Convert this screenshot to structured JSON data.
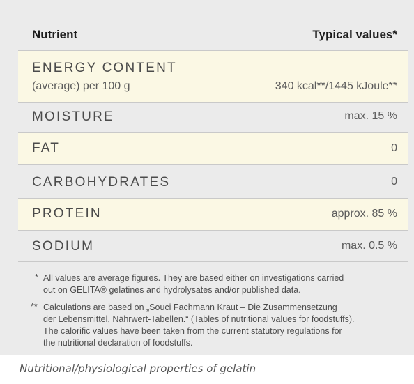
{
  "table": {
    "header_nutrient": "Nutrient",
    "header_values": "Typical values*",
    "rows": [
      {
        "label": "ENERGY CONTENT",
        "sub": "(average) per 100 g",
        "value": "340 kcal**/1445 kJoule**"
      },
      {
        "label": "MOISTURE",
        "value": "max. 15 %"
      },
      {
        "label": "FAT",
        "value": "0"
      },
      {
        "label": "CARBOHYDRATES",
        "value": "0"
      },
      {
        "label": "PROTEIN",
        "value": "approx. 85 %"
      },
      {
        "label": "SODIUM",
        "value": "max. 0.5 %"
      }
    ]
  },
  "footnotes": {
    "note1_mark": "*",
    "note1_line1": "All values are average figures. They are based either on investigations carried",
    "note1_line2": "out on GELITA® gelatines and hydrolysates and/or published data.",
    "note2_mark": "**",
    "note2_line1": "Calculations are based on „Souci Fachmann Kraut – Die Zusammensetzung",
    "note2_line2": "der Lebensmittel, Nährwert-Tabellen.“ (Tables of nutritional values for foodstuffs).",
    "note2_line3": "The calorific values have been taken from the current statutory regulations for",
    "note2_line4": "the nutritional declaration of foodstuffs."
  },
  "caption": "Nutritional/physiological properties of gelatin",
  "colors": {
    "card_bg": "#ebebeb",
    "highlight_row": "#fbf8e4"
  }
}
